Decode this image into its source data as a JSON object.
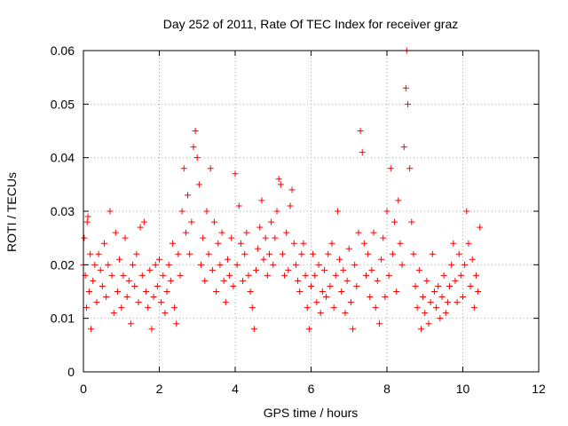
{
  "chart_data": {
    "type": "scatter",
    "title": "Day 252 of 2011, Rate Of TEC Index for receiver graz",
    "xlabel": "GPS time / hours",
    "ylabel": "ROTI / TECUs",
    "xlim": [
      0,
      12
    ],
    "ylim": [
      0,
      0.06
    ],
    "xticks": [
      "0",
      "2",
      "4",
      "6",
      "8",
      "10",
      "12"
    ],
    "yticks": [
      "0",
      "0.01",
      "0.02",
      "0.03",
      "0.04",
      "0.05",
      "0.06"
    ],
    "grid": true,
    "marker": "plus",
    "color": "#ff0000",
    "points": [
      [
        0.0,
        0.02
      ],
      [
        0.02,
        0.025
      ],
      [
        0.05,
        0.018
      ],
      [
        0.08,
        0.012
      ],
      [
        0.1,
        0.028
      ],
      [
        0.12,
        0.029
      ],
      [
        0.15,
        0.015
      ],
      [
        0.18,
        0.022
      ],
      [
        0.2,
        0.008
      ],
      [
        0.25,
        0.017
      ],
      [
        0.3,
        0.02
      ],
      [
        0.35,
        0.013
      ],
      [
        0.4,
        0.022
      ],
      [
        0.45,
        0.019
      ],
      [
        0.5,
        0.016
      ],
      [
        0.55,
        0.024
      ],
      [
        0.6,
        0.014
      ],
      [
        0.65,
        0.02
      ],
      [
        0.7,
        0.03
      ],
      [
        0.75,
        0.018
      ],
      [
        0.8,
        0.011
      ],
      [
        0.85,
        0.026
      ],
      [
        0.9,
        0.015
      ],
      [
        0.95,
        0.021
      ],
      [
        1.0,
        0.012
      ],
      [
        1.05,
        0.018
      ],
      [
        1.1,
        0.025
      ],
      [
        1.15,
        0.014
      ],
      [
        1.2,
        0.017
      ],
      [
        1.25,
        0.009
      ],
      [
        1.3,
        0.02
      ],
      [
        1.35,
        0.016
      ],
      [
        1.4,
        0.022
      ],
      [
        1.45,
        0.013
      ],
      [
        1.5,
        0.027
      ],
      [
        1.55,
        0.018
      ],
      [
        1.6,
        0.028
      ],
      [
        1.65,
        0.015
      ],
      [
        1.7,
        0.012
      ],
      [
        1.75,
        0.019
      ],
      [
        1.8,
        0.008
      ],
      [
        1.85,
        0.014
      ],
      [
        1.9,
        0.02
      ],
      [
        1.95,
        0.016
      ],
      [
        2.0,
        0.021
      ],
      [
        2.05,
        0.013
      ],
      [
        2.1,
        0.018
      ],
      [
        2.15,
        0.011
      ],
      [
        2.2,
        0.015
      ],
      [
        2.25,
        0.02
      ],
      [
        2.3,
        0.017
      ],
      [
        2.35,
        0.024
      ],
      [
        2.4,
        0.012
      ],
      [
        2.45,
        0.009
      ],
      [
        2.5,
        0.022
      ],
      [
        2.55,
        0.018
      ],
      [
        2.6,
        0.03
      ],
      [
        2.65,
        0.038
      ],
      [
        2.7,
        0.026
      ],
      [
        2.75,
        0.033
      ],
      [
        2.8,
        0.022
      ],
      [
        2.85,
        0.028
      ],
      [
        2.9,
        0.042
      ],
      [
        2.95,
        0.045
      ],
      [
        3.0,
        0.04
      ],
      [
        3.05,
        0.035
      ],
      [
        3.1,
        0.02
      ],
      [
        3.15,
        0.025
      ],
      [
        3.2,
        0.017
      ],
      [
        3.25,
        0.03
      ],
      [
        3.3,
        0.022
      ],
      [
        3.35,
        0.038
      ],
      [
        3.4,
        0.019
      ],
      [
        3.45,
        0.028
      ],
      [
        3.5,
        0.015
      ],
      [
        3.55,
        0.024
      ],
      [
        3.6,
        0.02
      ],
      [
        3.65,
        0.026
      ],
      [
        3.7,
        0.017
      ],
      [
        3.75,
        0.013
      ],
      [
        3.8,
        0.021
      ],
      [
        3.85,
        0.018
      ],
      [
        3.9,
        0.025
      ],
      [
        3.95,
        0.016
      ],
      [
        4.0,
        0.037
      ],
      [
        4.05,
        0.02
      ],
      [
        4.1,
        0.031
      ],
      [
        4.15,
        0.024
      ],
      [
        4.2,
        0.017
      ],
      [
        4.25,
        0.022
      ],
      [
        4.3,
        0.026
      ],
      [
        4.35,
        0.018
      ],
      [
        4.4,
        0.015
      ],
      [
        4.45,
        0.012
      ],
      [
        4.5,
        0.008
      ],
      [
        4.55,
        0.019
      ],
      [
        4.6,
        0.023
      ],
      [
        4.65,
        0.027
      ],
      [
        4.7,
        0.032
      ],
      [
        4.75,
        0.021
      ],
      [
        4.8,
        0.025
      ],
      [
        4.85,
        0.018
      ],
      [
        4.9,
        0.022
      ],
      [
        4.95,
        0.028
      ],
      [
        5.0,
        0.02
      ],
      [
        5.05,
        0.025
      ],
      [
        5.1,
        0.03
      ],
      [
        5.15,
        0.036
      ],
      [
        5.2,
        0.035
      ],
      [
        5.25,
        0.022
      ],
      [
        5.3,
        0.018
      ],
      [
        5.35,
        0.026
      ],
      [
        5.4,
        0.019
      ],
      [
        5.45,
        0.031
      ],
      [
        5.5,
        0.034
      ],
      [
        5.55,
        0.024
      ],
      [
        5.6,
        0.02
      ],
      [
        5.65,
        0.017
      ],
      [
        5.7,
        0.015
      ],
      [
        5.75,
        0.022
      ],
      [
        5.8,
        0.024
      ],
      [
        5.85,
        0.018
      ],
      [
        5.9,
        0.012
      ],
      [
        5.95,
        0.008
      ],
      [
        6.0,
        0.016
      ],
      [
        6.05,
        0.022
      ],
      [
        6.1,
        0.018
      ],
      [
        6.15,
        0.013
      ],
      [
        6.2,
        0.02
      ],
      [
        6.25,
        0.011
      ],
      [
        6.3,
        0.015
      ],
      [
        6.35,
        0.019
      ],
      [
        6.4,
        0.014
      ],
      [
        6.45,
        0.022
      ],
      [
        6.5,
        0.016
      ],
      [
        6.55,
        0.024
      ],
      [
        6.6,
        0.012
      ],
      [
        6.65,
        0.018
      ],
      [
        6.7,
        0.03
      ],
      [
        6.75,
        0.021
      ],
      [
        6.8,
        0.015
      ],
      [
        6.85,
        0.019
      ],
      [
        6.9,
        0.011
      ],
      [
        6.95,
        0.017
      ],
      [
        7.0,
        0.023
      ],
      [
        7.05,
        0.013
      ],
      [
        7.1,
        0.008
      ],
      [
        7.15,
        0.02
      ],
      [
        7.2,
        0.016
      ],
      [
        7.25,
        0.026
      ],
      [
        7.3,
        0.045
      ],
      [
        7.35,
        0.041
      ],
      [
        7.4,
        0.024
      ],
      [
        7.45,
        0.018
      ],
      [
        7.5,
        0.022
      ],
      [
        7.55,
        0.014
      ],
      [
        7.6,
        0.019
      ],
      [
        7.65,
        0.026
      ],
      [
        7.7,
        0.012
      ],
      [
        7.75,
        0.017
      ],
      [
        7.8,
        0.009
      ],
      [
        7.85,
        0.021
      ],
      [
        7.9,
        0.025
      ],
      [
        7.95,
        0.014
      ],
      [
        8.0,
        0.03
      ],
      [
        8.05,
        0.018
      ],
      [
        8.1,
        0.038
      ],
      [
        8.15,
        0.022
      ],
      [
        8.2,
        0.028
      ],
      [
        8.25,
        0.015
      ],
      [
        8.3,
        0.032
      ],
      [
        8.35,
        0.024
      ],
      [
        8.4,
        0.02
      ],
      [
        8.45,
        0.042
      ],
      [
        8.5,
        0.053
      ],
      [
        8.52,
        0.06
      ],
      [
        8.55,
        0.05
      ],
      [
        8.6,
        0.038
      ],
      [
        8.65,
        0.028
      ],
      [
        8.7,
        0.022
      ],
      [
        8.75,
        0.016
      ],
      [
        8.8,
        0.012
      ],
      [
        8.85,
        0.019
      ],
      [
        8.9,
        0.008
      ],
      [
        8.95,
        0.014
      ],
      [
        9.0,
        0.011
      ],
      [
        9.05,
        0.017
      ],
      [
        9.1,
        0.009
      ],
      [
        9.15,
        0.013
      ],
      [
        9.2,
        0.022
      ],
      [
        9.25,
        0.015
      ],
      [
        9.3,
        0.012
      ],
      [
        9.35,
        0.016
      ],
      [
        9.4,
        0.01
      ],
      [
        9.45,
        0.014
      ],
      [
        9.5,
        0.018
      ],
      [
        9.55,
        0.011
      ],
      [
        9.6,
        0.013
      ],
      [
        9.65,
        0.016
      ],
      [
        9.7,
        0.02
      ],
      [
        9.75,
        0.024
      ],
      [
        9.8,
        0.017
      ],
      [
        9.85,
        0.013
      ],
      [
        9.9,
        0.022
      ],
      [
        9.95,
        0.018
      ],
      [
        10.0,
        0.014
      ],
      [
        10.05,
        0.02
      ],
      [
        10.1,
        0.03
      ],
      [
        10.15,
        0.024
      ],
      [
        10.2,
        0.016
      ],
      [
        10.25,
        0.021
      ],
      [
        10.3,
        0.012
      ],
      [
        10.35,
        0.018
      ],
      [
        10.4,
        0.015
      ],
      [
        10.45,
        0.027
      ]
    ]
  }
}
